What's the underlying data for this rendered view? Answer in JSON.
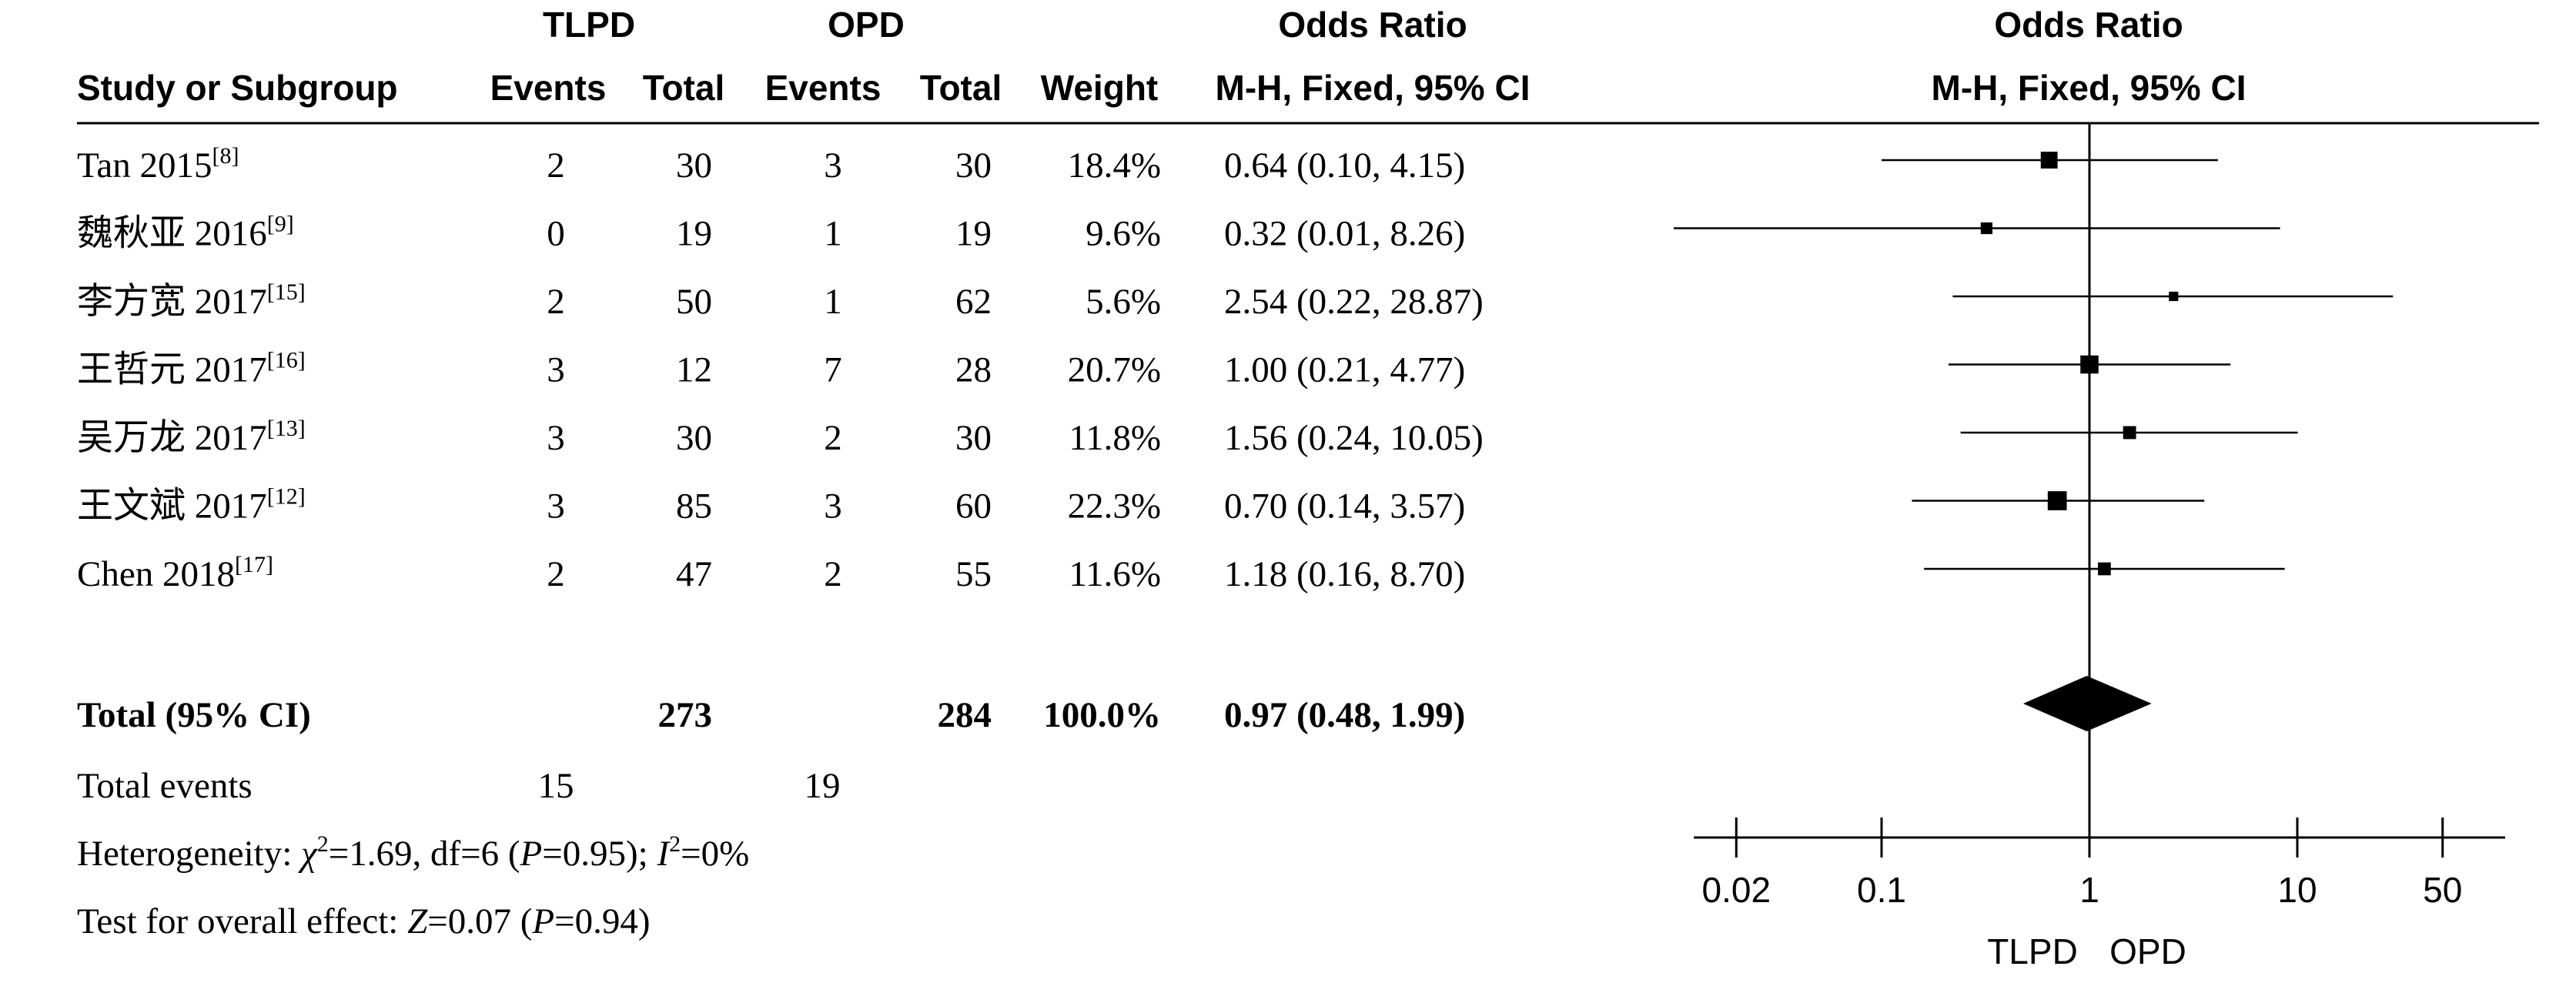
{
  "header": {
    "group1": "TLPD",
    "group2": "OPD",
    "or_table": "Odds Ratio",
    "or_plot": "Odds Ratio",
    "col_study": "Study or Subgroup",
    "col_events1": "Events",
    "col_total1": "Total",
    "col_events2": "Events",
    "col_total2": "Total",
    "col_weight": "Weight",
    "col_ci_table": "M-H, Fixed, 95% CI",
    "col_ci_plot": "M-H, Fixed, 95% CI"
  },
  "chart_data": {
    "type": "forest",
    "scale": "log",
    "xlim": [
      0.0125,
      100
    ],
    "xticks": [
      0.02,
      0.1,
      1,
      10,
      50
    ],
    "tick_labels": [
      "0.02",
      "0.1",
      "1",
      "10",
      "50"
    ],
    "favours_left": "TLPD",
    "favours_right": "OPD",
    "studies": [
      {
        "name": "Tan 2015",
        "ref": "[8]",
        "events1": "2",
        "total1": "30",
        "events2": "3",
        "total2": "30",
        "weight": "18.4%",
        "ci_text": "0.64 (0.10, 4.15)",
        "or": 0.64,
        "lo": 0.1,
        "hi": 4.15,
        "w": 18.4
      },
      {
        "name": "魏秋亚 2016",
        "ref": "[9]",
        "events1": "0",
        "total1": "19",
        "events2": "1",
        "total2": "19",
        "weight": "9.6%",
        "ci_text": "0.32 (0.01, 8.26)",
        "or": 0.32,
        "lo": 0.01,
        "hi": 8.26,
        "w": 9.6
      },
      {
        "name": "李方宽 2017",
        "ref": "[15]",
        "events1": "2",
        "total1": "50",
        "events2": "1",
        "total2": "62",
        "weight": "5.6%",
        "ci_text": "2.54 (0.22, 28.87)",
        "or": 2.54,
        "lo": 0.22,
        "hi": 28.87,
        "w": 5.6
      },
      {
        "name": "王哲元 2017",
        "ref": "[16]",
        "events1": "3",
        "total1": "12",
        "events2": "7",
        "total2": "28",
        "weight": "20.7%",
        "ci_text": "1.00 (0.21, 4.77)",
        "or": 1.0,
        "lo": 0.21,
        "hi": 4.77,
        "w": 20.7
      },
      {
        "name": "吴万龙 2017",
        "ref": "[13]",
        "events1": "3",
        "total1": "30",
        "events2": "2",
        "total2": "30",
        "weight": "11.8%",
        "ci_text": "1.56 (0.24, 10.05)",
        "or": 1.56,
        "lo": 0.24,
        "hi": 10.05,
        "w": 11.8
      },
      {
        "name": "王文斌 2017",
        "ref": "[12]",
        "events1": "3",
        "total1": "85",
        "events2": "3",
        "total2": "60",
        "weight": "22.3%",
        "ci_text": "0.70 (0.14, 3.57)",
        "or": 0.7,
        "lo": 0.14,
        "hi": 3.57,
        "w": 22.3
      },
      {
        "name": "Chen 2018",
        "ref": "[17]",
        "events1": "2",
        "total1": "47",
        "events2": "2",
        "total2": "55",
        "weight": "11.6%",
        "ci_text": "1.18 (0.16, 8.70)",
        "or": 1.18,
        "lo": 0.16,
        "hi": 8.7,
        "w": 11.6
      }
    ],
    "total": {
      "label": "Total (95% CI)",
      "total1": "273",
      "total2": "284",
      "weight": "100.0%",
      "ci_text": "0.97 (0.48, 1.99)",
      "or": 0.97,
      "lo": 0.48,
      "hi": 1.99
    },
    "total_events": {
      "label": "Total events",
      "events1": "15",
      "events2": "19"
    },
    "heterogeneity": {
      "prefix": "Heterogeneity: ",
      "chi_sym": "χ",
      "chi_sup": "2",
      "chi_val": "=1.69, df=6 (",
      "p_sym": "P",
      "p_val": "=0.95); ",
      "i_sym": "I",
      "i_sup": "2",
      "i_val": "=0%"
    },
    "overall": {
      "prefix": "Test for overall effect: ",
      "z_sym": "Z",
      "z_val": "=0.07 (",
      "p_sym": "P",
      "p_val": "=0.94)"
    }
  }
}
